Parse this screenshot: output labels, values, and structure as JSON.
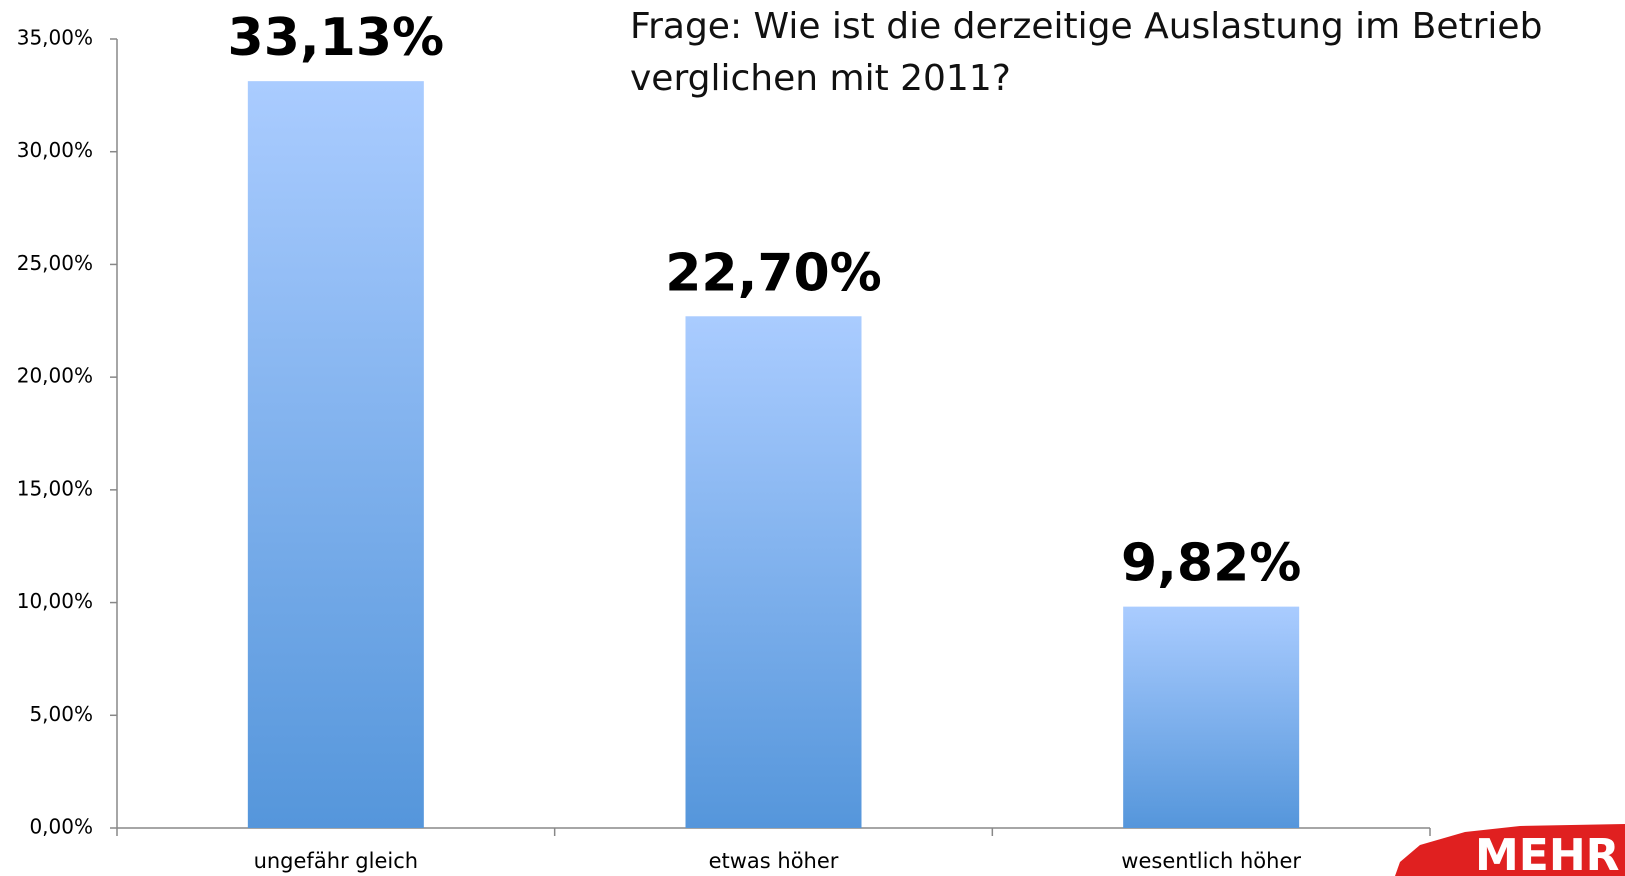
{
  "chart_data": {
    "type": "bar",
    "title_lines": [
      "Frage: Wie ist die derzeitige Auslastung im Betrieb",
      "verglichen mit 2011?"
    ],
    "categories": [
      "ungefähr gleich",
      "etwas höher",
      "wesentlich höher"
    ],
    "values": [
      33.13,
      22.7,
      9.82
    ],
    "value_labels": [
      "33,13%",
      "22,70%",
      "9,82%"
    ],
    "color": [
      "#aaccff",
      "#5596db"
    ],
    "ylim": [
      0,
      35
    ],
    "yticks": [
      {
        "value": 0,
        "label": "0,00%"
      },
      {
        "value": 5,
        "label": "5,00%"
      },
      {
        "value": 10,
        "label": "10,00%"
      },
      {
        "value": 15,
        "label": "15,00%"
      },
      {
        "value": 20,
        "label": "20,00%"
      },
      {
        "value": 25,
        "label": "25,00%"
      },
      {
        "value": 30,
        "label": "30,00%"
      },
      {
        "value": 35,
        "label": "35,00%"
      }
    ],
    "grid": false,
    "logo": "MEHR"
  }
}
